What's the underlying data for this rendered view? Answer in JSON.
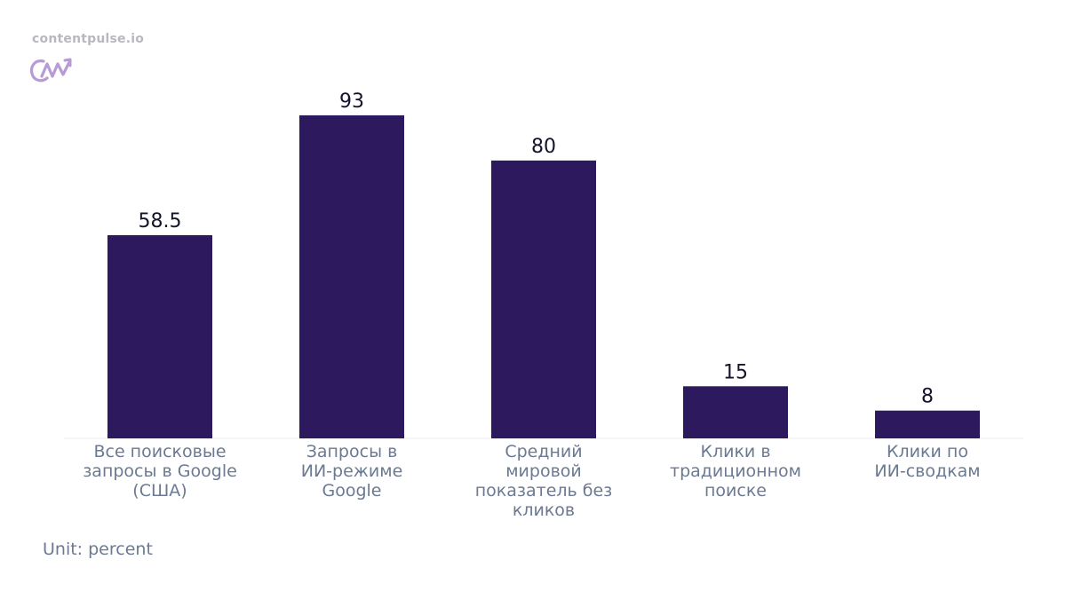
{
  "brand": {
    "name": "contentpulse.io",
    "logo_icon": "cn-trend-logo-icon"
  },
  "unit_label": "Unit: percent",
  "colors": {
    "bar": "#2d1a5e",
    "axis": "#eceef3",
    "category_text": "#6b7a92",
    "value_text": "#14142b",
    "logo": "#b79ad6"
  },
  "chart_data": {
    "type": "bar",
    "categories": [
      [
        "Все поисковые",
        "запросы в Google",
        "(США)"
      ],
      [
        "Запросы в",
        "ИИ-режиме",
        "Google"
      ],
      [
        "Средний",
        "мировой",
        "показатель без",
        "кликов"
      ],
      [
        "Клики в",
        "традиционном",
        "поиске"
      ],
      [
        "Клики по",
        "ИИ-сводкам"
      ]
    ],
    "values": [
      58.5,
      93,
      80,
      15,
      8
    ],
    "value_labels": [
      "58.5",
      "93",
      "80",
      "15",
      "8"
    ],
    "ylim": [
      0,
      93
    ],
    "grid": false
  }
}
